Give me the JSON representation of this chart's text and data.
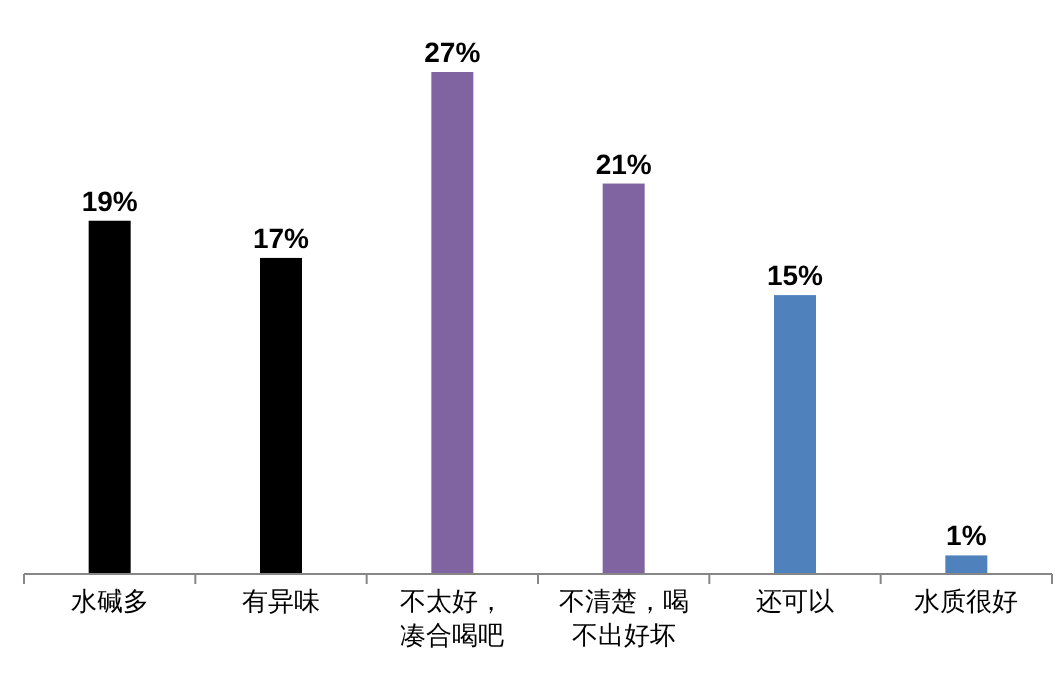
{
  "chart_data": {
    "type": "bar",
    "categories": [
      "水碱多",
      "有异味",
      "不太好，凑合喝吧",
      "不清楚，喝不出好坏",
      "还可以",
      "水质很好"
    ],
    "values": [
      19,
      17,
      27,
      21,
      15,
      1
    ],
    "colors": [
      "#000000",
      "#000000",
      "#8064a2",
      "#8064a2",
      "#4f81bd",
      "#4f81bd"
    ],
    "value_labels": [
      "19%",
      "17%",
      "27%",
      "21%",
      "15%",
      "1%"
    ],
    "ylim": [
      0,
      27
    ],
    "tick_labels": "x"
  }
}
